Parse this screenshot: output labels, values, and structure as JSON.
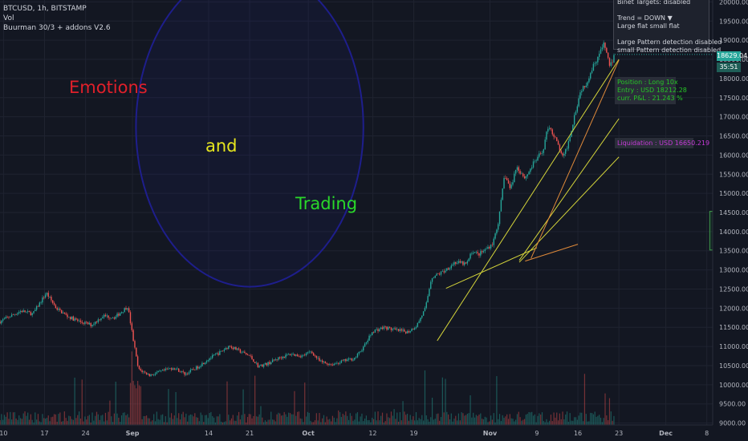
{
  "header": {
    "symbol": "BTCUSD, 1h, BITSTAMP",
    "volume": "Vol",
    "indicator": "Buurman 30/3 + addons V2.6"
  },
  "info_panel": {
    "lines": [
      "Binet Targets: disabled",
      "",
      "Trend =  DOWN  ▼",
      "  Large flat small flat",
      "",
      "Large Pattern detection disabled",
      "small Pattern detection disabled"
    ]
  },
  "position_box": {
    "line1": "Position : Long 10x",
    "line2": "Entry : USD 18212.28",
    "line3": "curr. P&L : 21.243 %"
  },
  "liquidation_box": {
    "text": "Liquidation : USD 16650.219"
  },
  "price_tags": {
    "last_price": "18629.04",
    "countdown": "35:51"
  },
  "annotations": {
    "emotions": "Emotions",
    "and": "and",
    "trading": "Trading"
  },
  "colors": {
    "background": "#131722",
    "up": "#26a69a",
    "down": "#ef5350",
    "trendline_yellow": "#d4d43a",
    "trendline_orange": "#e08a3a",
    "ellipse": "#1e1e8c",
    "emotions": "#e0202a",
    "and": "#e6e61e",
    "trading": "#2ad82a"
  },
  "chart_data": {
    "type": "candlestick",
    "symbol": "BTCUSD",
    "interval": "1h",
    "exchange": "BITSTAMP",
    "y_axis": {
      "ticks": [
        9000,
        9500,
        10000,
        10500,
        11000,
        11500,
        12000,
        12500,
        13000,
        13500,
        14000,
        14500,
        15000,
        15500,
        16000,
        16500,
        17000,
        17500,
        18000,
        18500,
        19000,
        19500,
        20000
      ],
      "tick_labels": [
        "9000.00",
        "9500.00",
        "10000.00",
        "10500.00",
        "11000.00",
        "11500.00",
        "12000.00",
        "12500.00",
        "13000.00",
        "13500.00",
        "14000.00",
        "14500.00",
        "15000.00",
        "15500.00",
        "16000.00",
        "16500.00",
        "17000.00",
        "17500.00",
        "18000.00",
        "18500.00",
        "19000.00",
        "19500.00",
        "20000.00"
      ],
      "range": [
        8950,
        20050
      ]
    },
    "x_axis": {
      "labels": [
        {
          "label": "10",
          "day": 10
        },
        {
          "label": "17",
          "day": 17
        },
        {
          "label": "24",
          "day": 24
        },
        {
          "label": "Sep",
          "day": 32
        },
        {
          "label": "14",
          "day": 45
        },
        {
          "label": "21",
          "day": 52
        },
        {
          "label": "Oct",
          "day": 62
        },
        {
          "label": "12",
          "day": 73
        },
        {
          "label": "19",
          "day": 80
        },
        {
          "label": "Nov",
          "day": 93
        },
        {
          "label": "9",
          "day": 101
        },
        {
          "label": "16",
          "day": 108
        },
        {
          "label": "23",
          "day": 115
        },
        {
          "label": "Dec",
          "day": 123
        },
        {
          "label": "8",
          "day": 130
        }
      ],
      "range": [
        9.4,
        131
      ]
    },
    "price_path": [
      [
        9.4,
        11650
      ],
      [
        11,
        11780
      ],
      [
        13,
        11930
      ],
      [
        15,
        11850
      ],
      [
        17.3,
        12400
      ],
      [
        19,
        12000
      ],
      [
        21,
        11780
      ],
      [
        23,
        11650
      ],
      [
        25,
        11560
      ],
      [
        27,
        11800
      ],
      [
        29,
        11760
      ],
      [
        31.2,
        12050
      ],
      [
        32,
        11300
      ],
      [
        33,
        10400
      ],
      [
        35,
        10250
      ],
      [
        37,
        10350
      ],
      [
        39,
        10450
      ],
      [
        41,
        10280
      ],
      [
        43,
        10450
      ],
      [
        45,
        10680
      ],
      [
        47,
        10850
      ],
      [
        48.5,
        11020
      ],
      [
        50,
        10900
      ],
      [
        52,
        10750
      ],
      [
        53.5,
        10480
      ],
      [
        55,
        10550
      ],
      [
        57,
        10700
      ],
      [
        59,
        10800
      ],
      [
        61,
        10750
      ],
      [
        62.5,
        10870
      ],
      [
        64,
        10600
      ],
      [
        66,
        10530
      ],
      [
        68,
        10620
      ],
      [
        70,
        10700
      ],
      [
        71.5,
        11000
      ],
      [
        73,
        11400
      ],
      [
        75,
        11500
      ],
      [
        77,
        11420
      ],
      [
        79,
        11380
      ],
      [
        80.5,
        11550
      ],
      [
        82,
        12000
      ],
      [
        83,
        12800
      ],
      [
        85,
        12950
      ],
      [
        87,
        13200
      ],
      [
        89,
        13150
      ],
      [
        90,
        13500
      ],
      [
        91,
        13400
      ],
      [
        92,
        13500
      ],
      [
        93.5,
        13700
      ],
      [
        94.5,
        14300
      ],
      [
        95.5,
        15500
      ],
      [
        96.5,
        15100
      ],
      [
        97.5,
        15700
      ],
      [
        99,
        15400
      ],
      [
        100.5,
        15800
      ],
      [
        102,
        16100
      ],
      [
        103,
        16800
      ],
      [
        104.5,
        16300
      ],
      [
        105.5,
        15900
      ],
      [
        106.5,
        16400
      ],
      [
        107.5,
        17100
      ],
      [
        108.5,
        17700
      ],
      [
        109.5,
        17900
      ],
      [
        110.5,
        18300
      ],
      [
        111.5,
        18600
      ],
      [
        112.5,
        18900
      ],
      [
        113.5,
        18300
      ],
      [
        114.3,
        18630
      ]
    ],
    "trendlines": [
      {
        "color": "yellow",
        "from": [
          84,
          11150
        ],
        "to": [
          115,
          18500
        ]
      },
      {
        "color": "yellow",
        "from": [
          98,
          13250
        ],
        "to": [
          115,
          16950
        ]
      },
      {
        "color": "yellow",
        "from": [
          98,
          13200
        ],
        "to": [
          115,
          15950
        ]
      },
      {
        "color": "yellow",
        "from": [
          85.5,
          12520
        ],
        "to": [
          101,
          13580
        ]
      },
      {
        "color": "orange",
        "from": [
          99,
          13230
        ],
        "to": [
          108,
          13670
        ]
      },
      {
        "color": "orange",
        "from": [
          100,
          13300
        ],
        "to": [
          115,
          18480
        ]
      }
    ],
    "ellipse_annotation": {
      "center": [
        52,
        16730
      ],
      "rx_days": 19.4,
      "ry_price": 4170
    },
    "rectangle_annotation": {
      "from": [
        130.5,
        14530
      ],
      "to": [
        136,
        13520
      ]
    },
    "last_price": 18629.04
  }
}
